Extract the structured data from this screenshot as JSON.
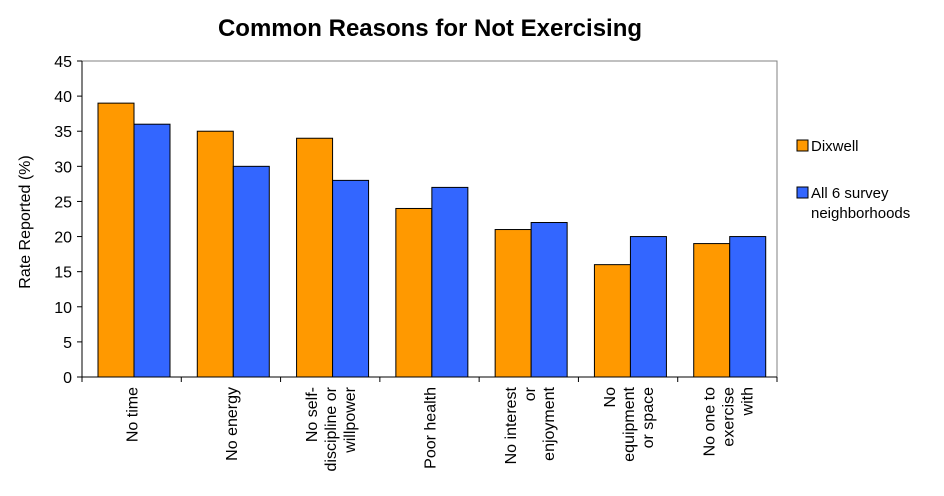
{
  "chart_data": {
    "type": "bar",
    "title": "Common Reasons for Not Exercising",
    "xlabel": "",
    "ylabel": "Rate Reported (%)",
    "ylim": [
      0,
      45
    ],
    "yticks": [
      0,
      5,
      10,
      15,
      20,
      25,
      30,
      35,
      40,
      45
    ],
    "grid": false,
    "legend_position": "right",
    "categories": [
      "No time",
      "No energy",
      "No self-discipline or willpower",
      "Poor health",
      "No interest or enjoyment",
      "No equipment or space",
      "No one to exercise with"
    ],
    "category_label_lines": [
      [
        "No time"
      ],
      [
        "No energy"
      ],
      [
        "No self-",
        "discipline or",
        "willpower"
      ],
      [
        "Poor health"
      ],
      [
        "No interest",
        "or",
        "enjoyment"
      ],
      [
        "No",
        "equipment",
        "or space"
      ],
      [
        "No one to",
        "exercise",
        "with"
      ]
    ],
    "series": [
      {
        "name": "Dixwell",
        "color": "#FF9900",
        "values": [
          39,
          35,
          34,
          24,
          21,
          16,
          19
        ]
      },
      {
        "name": "All 6 survey neighborhoods",
        "color": "#3366FF",
        "values": [
          36,
          30,
          28,
          27,
          22,
          20,
          20
        ]
      }
    ],
    "legend_label_lines": [
      [
        "Dixwell"
      ],
      [
        "All 6 survey",
        "neighborhoods"
      ]
    ]
  }
}
